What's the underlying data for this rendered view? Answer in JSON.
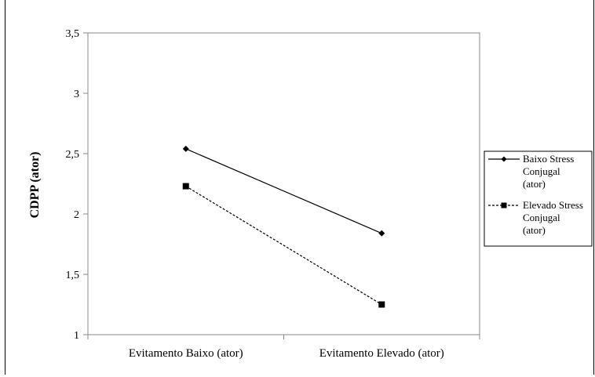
{
  "chart_data": {
    "type": "line",
    "title": "",
    "xlabel": "",
    "ylabel": "CDPP (ator)",
    "categories": [
      "Evitamento Baixo (ator)",
      "Evitamento Elevado (ator)"
    ],
    "ylim": [
      1,
      3.5
    ],
    "yticks": [
      "1",
      "1,5",
      "2",
      "2,5",
      "3",
      "3,5"
    ],
    "ytick_values": [
      1,
      1.5,
      2,
      2.5,
      3,
      3.5
    ],
    "grid": false,
    "legend_position": "right",
    "series": [
      {
        "name_lines": [
          "Baixo Stress",
          "Conjugal",
          "(ator)"
        ],
        "values": [
          2.54,
          1.84
        ],
        "marker": "diamond",
        "line": "solid",
        "color": "#000000"
      },
      {
        "name_lines": [
          "Elevado Stress",
          "Conjugal",
          "(ator)"
        ],
        "values": [
          2.23,
          1.25
        ],
        "marker": "square",
        "line": "dashed",
        "color": "#000000"
      }
    ]
  }
}
